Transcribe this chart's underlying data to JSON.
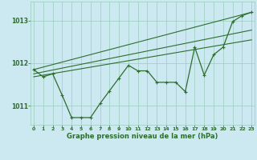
{
  "xlabel": "Graphe pression niveau de la mer (hPa)",
  "bg_color": "#cce8f0",
  "grid_color": "#99ccbb",
  "line_color": "#2d6e2d",
  "x_ticks": [
    0,
    1,
    2,
    3,
    4,
    5,
    6,
    7,
    8,
    9,
    10,
    11,
    12,
    13,
    14,
    15,
    16,
    17,
    18,
    19,
    20,
    21,
    22,
    23
  ],
  "y_ticks": [
    1011,
    1012,
    1013
  ],
  "ylim": [
    1010.55,
    1013.45
  ],
  "xlim": [
    -0.3,
    23.3
  ],
  "line1_x": [
    0,
    1,
    2,
    3,
    4,
    5,
    6,
    7,
    8,
    9,
    10,
    11,
    12,
    13,
    14,
    15,
    16,
    17,
    18,
    19,
    20,
    21,
    22,
    23
  ],
  "line1_y": [
    1011.85,
    1011.68,
    1011.75,
    1011.25,
    1010.72,
    1010.72,
    1010.72,
    1011.05,
    1011.35,
    1011.65,
    1011.95,
    1011.82,
    1011.82,
    1011.55,
    1011.55,
    1011.55,
    1011.33,
    1012.38,
    1011.72,
    1012.2,
    1012.38,
    1012.98,
    1013.12,
    1013.2
  ],
  "line2_x": [
    0,
    23
  ],
  "line2_y": [
    1011.85,
    1013.2
  ],
  "line3_x": [
    0,
    23
  ],
  "line3_y": [
    1011.75,
    1012.78
  ],
  "line4_x": [
    0,
    23
  ],
  "line4_y": [
    1011.68,
    1012.55
  ]
}
